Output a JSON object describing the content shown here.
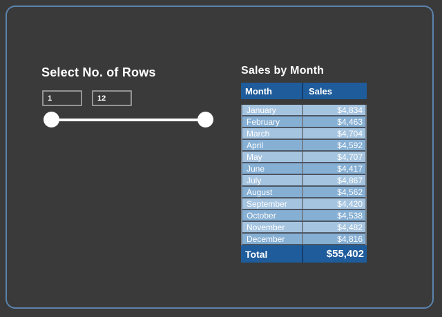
{
  "slicer": {
    "title": "Select No. of Rows",
    "range_start": "1",
    "range_end": "12"
  },
  "sales_table": {
    "title": "Sales by Month",
    "columns": {
      "month": "Month",
      "sales": "Sales"
    },
    "rows": [
      {
        "month": "January",
        "sales": "$4,834"
      },
      {
        "month": "February",
        "sales": "$4,463"
      },
      {
        "month": "March",
        "sales": "$4,704"
      },
      {
        "month": "April",
        "sales": "$4,592"
      },
      {
        "month": "May",
        "sales": "$4,707"
      },
      {
        "month": "June",
        "sales": "$4,417"
      },
      {
        "month": "July",
        "sales": "$4,867"
      },
      {
        "month": "August",
        "sales": "$4,562"
      },
      {
        "month": "September",
        "sales": "$4,420"
      },
      {
        "month": "October",
        "sales": "$4,538"
      },
      {
        "month": "November",
        "sales": "$4,482"
      },
      {
        "month": "December",
        "sales": "$4,816"
      }
    ],
    "total": {
      "label": "Total",
      "value": "$55,402"
    }
  },
  "chart_data": {
    "type": "table",
    "title": "Sales by Month",
    "categories": [
      "January",
      "February",
      "March",
      "April",
      "May",
      "June",
      "July",
      "August",
      "September",
      "October",
      "November",
      "December"
    ],
    "values": [
      4834,
      4463,
      4704,
      4592,
      4707,
      4417,
      4867,
      4562,
      4420,
      4538,
      4482,
      4816
    ],
    "total": 55402
  },
  "colors": {
    "page_bg": "#3a3a3a",
    "frame_border": "#5b84ae",
    "table_header_bg": "#1e5c9c",
    "table_total_bg": "#1e5c9c",
    "row_light": "#a5c4e0",
    "row_medium": "#86afd4",
    "grid_line": "#75828f",
    "text_light": "#ffffff",
    "slider_color": "#ffffff"
  }
}
